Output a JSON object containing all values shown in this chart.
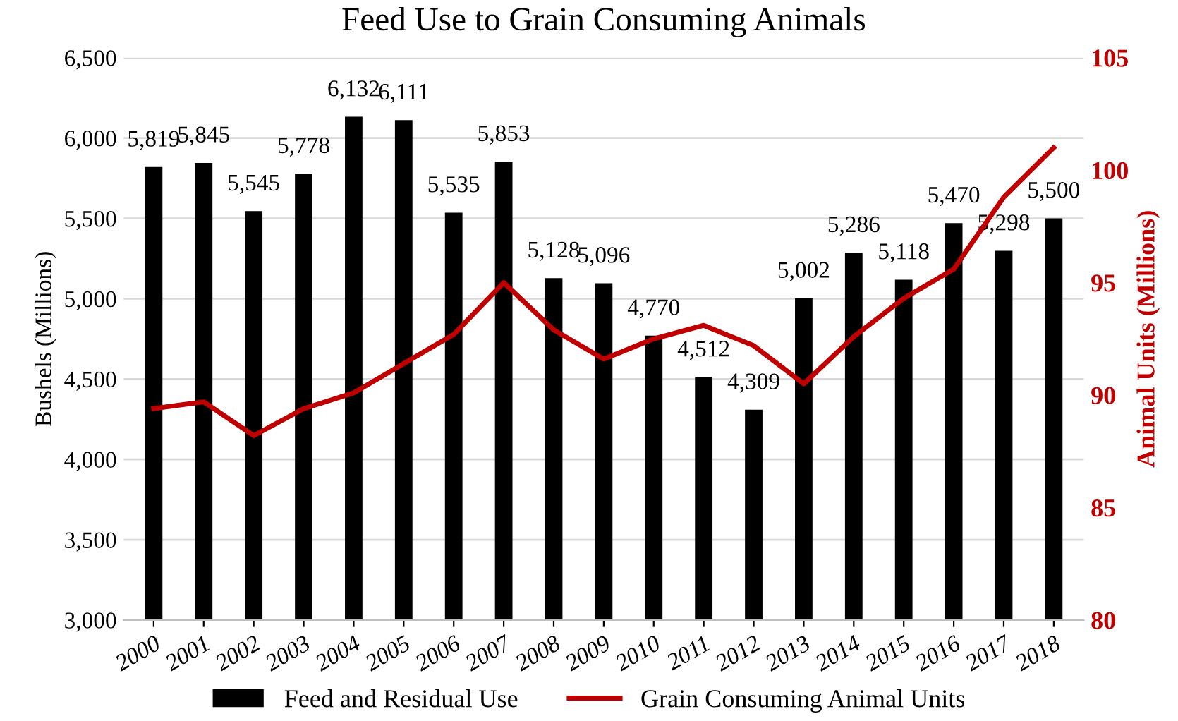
{
  "chart_data": {
    "type": "bar",
    "title": "Feed Use to Grain Consuming Animals",
    "ylabel": "Bushels (Millions)",
    "y2label": "Animal Units (Millions)",
    "categories": [
      "2000",
      "2001",
      "2002",
      "2003",
      "2004",
      "2005",
      "2006",
      "2007",
      "2008",
      "2009",
      "2010",
      "2011",
      "2012",
      "2013",
      "2014",
      "2015",
      "2016",
      "2017",
      "2018"
    ],
    "series": [
      {
        "name": "Feed and Residual Use",
        "color": "#000000",
        "values": [
          5819,
          5845,
          5545,
          5778,
          6132,
          6111,
          5535,
          5853,
          5128,
          5096,
          4770,
          4512,
          4309,
          5002,
          5286,
          5118,
          5470,
          5298,
          5500
        ],
        "value_labels": [
          "5,819",
          "5,845",
          "5,545",
          "5,778",
          "6,132",
          "6,111",
          "5,535",
          "5,853",
          "5,128",
          "5,096",
          "4,770",
          "4,512",
          "4,309",
          "5,002",
          "5,286",
          "5,118",
          "5,470",
          "5,298",
          "5,500"
        ]
      },
      {
        "name": "Grain Consuming Animal Units",
        "type": "line",
        "axis": "y2",
        "color": "#c00000",
        "values": [
          89.4,
          89.7,
          88.2,
          89.4,
          90.1,
          91.4,
          92.7,
          95.0,
          92.9,
          91.6,
          92.5,
          93.1,
          92.2,
          90.5,
          92.6,
          94.3,
          95.6,
          98.8,
          101.0
        ]
      }
    ],
    "ylim": [
      3000,
      6500
    ],
    "yticks": [
      {
        "value": 3000,
        "label": "3,000"
      },
      {
        "value": 3500,
        "label": "3,500"
      },
      {
        "value": 4000,
        "label": "4,000"
      },
      {
        "value": 4500,
        "label": "4,500"
      },
      {
        "value": 5000,
        "label": "5,000"
      },
      {
        "value": 5500,
        "label": "5,500"
      },
      {
        "value": 6000,
        "label": "6,000"
      },
      {
        "value": 6500,
        "label": "6,500"
      }
    ],
    "y2lim": [
      80,
      105
    ],
    "y2ticks": [
      80,
      85,
      90,
      95,
      100,
      105
    ],
    "grid": "y",
    "legend": "bottom",
    "marker": "none",
    "line_style": "solid"
  }
}
